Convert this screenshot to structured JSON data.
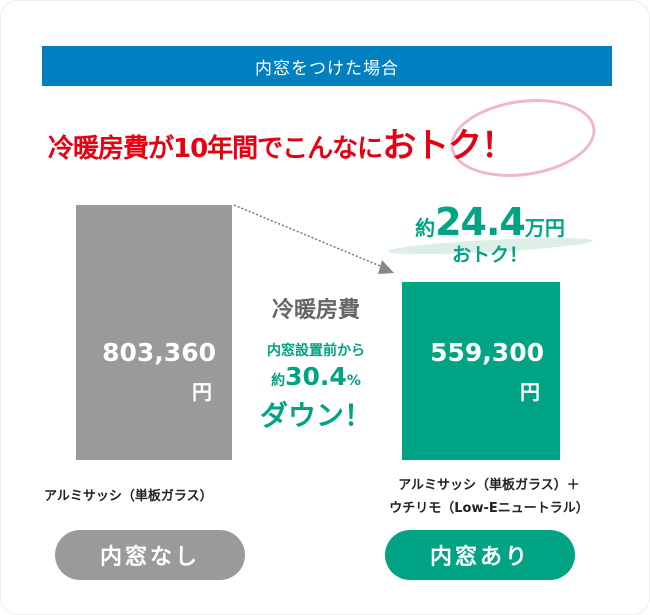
{
  "banner": "内窓をつけた場合",
  "headline": {
    "prefix": "冷暖房費が10年間でこんなに",
    "emphasis": "おトク！"
  },
  "savings": {
    "prefix": "約",
    "amount": "24.4",
    "unit": "万円",
    "suffix": "おトク！"
  },
  "middle": {
    "title": "冷暖房費",
    "line1": "内窓設置前から",
    "prefix": "約",
    "percent": "30.4",
    "percent_sign": "%",
    "line3": "ダウン！"
  },
  "colors": {
    "banner": "#0080c0",
    "headline": "#e60012",
    "before_bar": "#9a9a9a",
    "after_bar": "#00a384",
    "highlight_circle": "#f1b6cf"
  },
  "chart_data": {
    "type": "bar",
    "categories": [
      "内窓なし",
      "内窓あり"
    ],
    "values": [
      803360,
      559300
    ],
    "value_labels": [
      "803,360",
      "559,300"
    ],
    "unit": "円",
    "bar_captions": [
      "アルミサッシ（単板ガラス）",
      "アルミサッシ（単板ガラス）＋\nウチリモ（Low-Eニュートラル）"
    ],
    "caption_lines": [
      [
        "アルミサッシ（単板ガラス）"
      ],
      [
        "アルミサッシ（単板ガラス）＋",
        "ウチリモ（Low-Eニュートラル）"
      ]
    ],
    "colors": [
      "#9a9a9a",
      "#00a384"
    ],
    "ylim": [
      0,
      803360
    ],
    "grid": false
  }
}
